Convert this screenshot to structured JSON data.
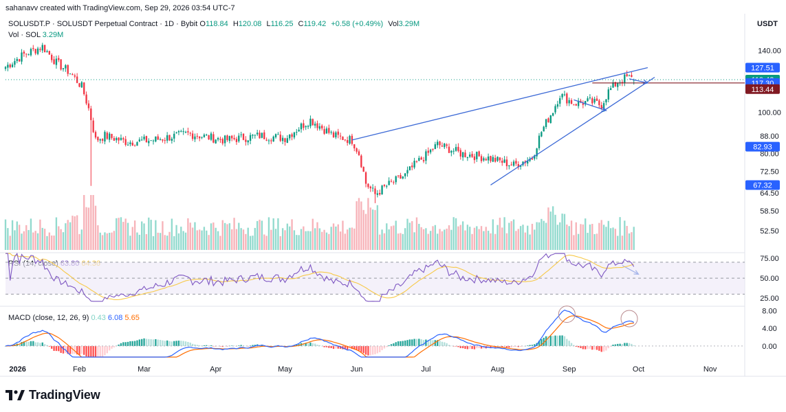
{
  "header": {
    "credit": "sahanavv created with TradingView.com, Sep 29, 2026 03:54 UTC-7"
  },
  "legend": {
    "symbol": "SOLUSDT.P · SOLUSDT Perpetual Contract · 1D · Bybit",
    "o_label": "O",
    "o_value": "118.84",
    "h_label": "H",
    "h_value": "120.08",
    "l_label": "L",
    "l_value": "116.25",
    "c_label": "C",
    "c_value": "119.42",
    "change": "+0.58 (+0.49%)",
    "vol_label": "Vol",
    "vol_value": "3.29M",
    "vol_row_label": "Vol · SOL",
    "vol_row_value": "3.29M"
  },
  "axis": {
    "currency": "USDT"
  },
  "rsi_legend": {
    "label": "RSI (14, close)",
    "value": "63.80",
    "ma_value": "64.36"
  },
  "macd_legend": {
    "label": "MACD (close, 12, 26, 9)",
    "hist": "0.43",
    "macd": "6.08",
    "signal": "5.65"
  },
  "brand": {
    "name": "TradingView"
  },
  "colors": {
    "up": "#089981",
    "down": "#f23645",
    "rsi": "#7e57c2",
    "rsi_ma": "#f7c948",
    "macd": "#2962ff",
    "signal": "#ff6d00",
    "trendline": "#3d6ad6",
    "accent_dark": "#801922"
  },
  "chart_data": [
    {
      "type": "candlestick",
      "title": "SOLUSDT.P · SOLUSDT Perpetual Contract · 1D · Bybit",
      "yunit": "USDT",
      "ylim": [
        48,
        150
      ],
      "y_ticks": [
        "140.00",
        "100.00",
        "88.00",
        "80.00",
        "72.50",
        "64.50",
        "58.50",
        "52.50"
      ],
      "price_labels": [
        {
          "value": "127.51",
          "color": "#2962ff"
        },
        {
          "value": "119.42",
          "color": "#089981"
        },
        {
          "value": "117.30",
          "color": "#2962ff"
        },
        {
          "value": "113.44",
          "color": "#801922"
        },
        {
          "value": "82.93",
          "color": "#2962ff"
        },
        {
          "value": "67.32",
          "color": "#2962ff"
        }
      ],
      "x_ticks": [
        "2026",
        "Feb",
        "Mar",
        "Apr",
        "May",
        "Jun",
        "Jul",
        "Aug",
        "Sep",
        "Oct",
        "Nov"
      ],
      "x_tick_dates": [
        "2026-01-01",
        "2026-02-01",
        "2026-03-01",
        "2026-04-01",
        "2026-05-01",
        "2026-06-01",
        "2026-07-01",
        "2026-08-01",
        "2026-09-01",
        "2026-10-01",
        "2026-11-01"
      ],
      "close_path": [
        [
          "2025-12-31",
          128
        ],
        [
          "2026-01-08",
          137
        ],
        [
          "2026-01-16",
          143
        ],
        [
          "2026-01-22",
          131
        ],
        [
          "2026-01-28",
          124
        ],
        [
          "2026-02-02",
          115
        ],
        [
          "2026-02-05",
          102
        ],
        [
          "2026-02-08",
          86
        ],
        [
          "2026-02-12",
          88
        ],
        [
          "2026-02-22",
          85
        ],
        [
          "2026-03-05",
          86
        ],
        [
          "2026-03-20",
          89
        ],
        [
          "2026-04-05",
          86
        ],
        [
          "2026-04-20",
          88
        ],
        [
          "2026-05-01",
          87
        ],
        [
          "2026-05-12",
          96
        ],
        [
          "2026-05-22",
          88
        ],
        [
          "2026-05-30",
          86
        ],
        [
          "2026-06-02",
          80
        ],
        [
          "2026-06-05",
          68
        ],
        [
          "2026-06-09",
          64
        ],
        [
          "2026-06-14",
          67
        ],
        [
          "2026-06-22",
          71
        ],
        [
          "2026-06-27",
          76
        ],
        [
          "2026-07-01",
          79
        ],
        [
          "2026-07-06",
          84
        ],
        [
          "2026-07-16",
          80
        ],
        [
          "2026-07-28",
          78
        ],
        [
          "2026-08-08",
          75
        ],
        [
          "2026-08-16",
          78
        ],
        [
          "2026-08-20",
          90
        ],
        [
          "2026-08-25",
          101
        ],
        [
          "2026-08-28",
          110
        ],
        [
          "2026-09-03",
          105
        ],
        [
          "2026-09-10",
          106
        ],
        [
          "2026-09-15",
          104
        ],
        [
          "2026-09-18",
          112
        ],
        [
          "2026-09-22",
          118
        ],
        [
          "2026-09-26",
          121
        ],
        [
          "2026-09-29",
          119.42
        ]
      ],
      "annotations": [
        "rising wedge upper trendline",
        "rising wedge lower trendline",
        "horizontal level 117.30"
      ]
    },
    {
      "type": "bar",
      "title": "Vol · SOL",
      "note": "daily volume bars colored by candle direction; spikes early Feb, early Jun, late Aug"
    },
    {
      "type": "line",
      "title": "RSI (14, close)",
      "series": [
        {
          "name": "RSI",
          "last": 63.8
        },
        {
          "name": "RSI MA",
          "last": 64.36
        }
      ],
      "y_ticks": [
        "75.00",
        "50.00",
        "25.00"
      ],
      "bands": [
        30,
        70
      ],
      "ylim": [
        20,
        82
      ]
    },
    {
      "type": "line",
      "title": "MACD (close, 12, 26, 9)",
      "series": [
        {
          "name": "Histogram",
          "last": 0.43
        },
        {
          "name": "MACD",
          "last": 6.08
        },
        {
          "name": "Signal",
          "last": 5.65
        }
      ],
      "y_ticks": [
        "8.00",
        "4.00",
        "0.00"
      ],
      "ylim": [
        -2.5,
        9
      ]
    }
  ]
}
